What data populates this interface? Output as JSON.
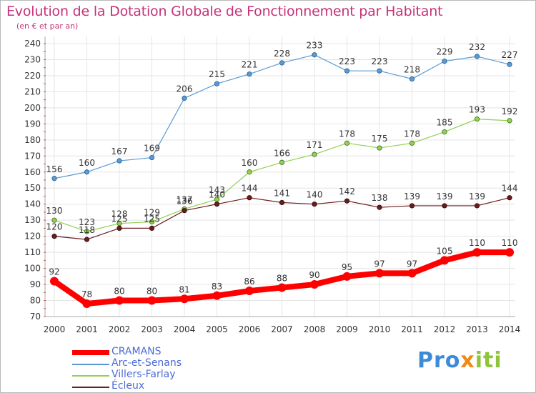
{
  "title": "Evolution de la Dotation Globale de Fonctionnement par Habitant",
  "subtitle": "(en € et par an)",
  "logo": {
    "part1": "Pro",
    "part2": "x",
    "part3": "iti",
    "colors": [
      "#3d8ad6",
      "#f08a16",
      "#8ec33a"
    ]
  },
  "chart_data": {
    "type": "line",
    "x": [
      "2000",
      "2001",
      "2002",
      "2003",
      "2004",
      "2005",
      "2006",
      "2007",
      "2008",
      "2009",
      "2010",
      "2011",
      "2012",
      "2013",
      "2014"
    ],
    "ylim": [
      70,
      240
    ],
    "yticks": [
      70,
      80,
      90,
      100,
      110,
      120,
      130,
      140,
      150,
      160,
      170,
      180,
      190,
      200,
      210,
      220,
      230,
      240
    ],
    "grid": true,
    "legend_position": "bottom-left",
    "series": [
      {
        "name": "CRAMANS",
        "color": "#ff0000",
        "values": [
          92,
          78,
          80,
          80,
          81,
          83,
          86,
          88,
          90,
          95,
          97,
          97,
          105,
          110,
          110
        ]
      },
      {
        "name": "Arc-et-Senans",
        "color": "#5a9ad4",
        "values": [
          156,
          160,
          167,
          169,
          206,
          215,
          221,
          228,
          233,
          223,
          223,
          218,
          229,
          232,
          227
        ]
      },
      {
        "name": "Villers-Farlay",
        "color": "#92d050",
        "values": [
          130,
          123,
          128,
          129,
          137,
          143,
          160,
          166,
          171,
          178,
          175,
          178,
          185,
          193,
          192
        ]
      },
      {
        "name": "Écleux",
        "color": "#6b1d1d",
        "values": [
          120,
          118,
          125,
          125,
          136,
          140,
          144,
          141,
          140,
          142,
          138,
          139,
          139,
          139,
          144
        ]
      }
    ]
  }
}
